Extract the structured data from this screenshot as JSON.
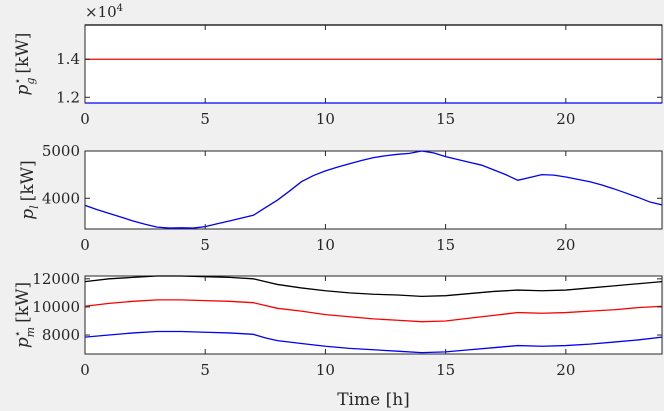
{
  "chart_data": [
    {
      "type": "line",
      "ylabel": "p_g^⋆ [kW]",
      "ylabel_base": "p",
      "ylabel_sub": "g",
      "ylabel_sup": "⋆",
      "ylabel_unit": "[kW]",
      "exponent_label": "×10",
      "exponent_power": "4",
      "xlim": [
        0,
        24
      ],
      "ylim": [
        11700,
        15800
      ],
      "xticks": [
        "0",
        "5",
        "10",
        "15",
        "20"
      ],
      "xtick_values": [
        0,
        5,
        10,
        15,
        20
      ],
      "yticks": [
        "1.2",
        "1.4"
      ],
      "ytick_values": [
        12000,
        14000
      ],
      "grid": false,
      "series": [
        {
          "color": "#000000",
          "x": [
            0,
            24
          ],
          "y": [
            15800,
            15800
          ]
        },
        {
          "color": "#ff0000",
          "x": [
            0,
            24
          ],
          "y": [
            14000,
            14000
          ]
        },
        {
          "color": "#0000ff",
          "x": [
            0,
            24
          ],
          "y": [
            11700,
            11700
          ]
        }
      ]
    },
    {
      "type": "line",
      "ylabel": "p_l [kW]",
      "ylabel_base": "p",
      "ylabel_sub": "l",
      "ylabel_unit": "[kW]",
      "xlim": [
        0,
        24
      ],
      "ylim": [
        3350,
        5000
      ],
      "xticks": [
        "0",
        "5",
        "10",
        "15",
        "20"
      ],
      "xtick_values": [
        0,
        5,
        10,
        15,
        20
      ],
      "yticks": [
        "4000",
        "5000"
      ],
      "ytick_values": [
        4000,
        5000
      ],
      "grid": false,
      "series": [
        {
          "color": "#0000ff",
          "x": [
            0,
            0.5,
            1,
            1.5,
            2,
            2.5,
            3,
            3.5,
            4,
            4.5,
            5,
            5.5,
            6,
            6.5,
            7,
            7.5,
            8,
            8.5,
            9,
            9.5,
            10,
            10.5,
            11,
            11.5,
            12,
            12.5,
            13,
            13.5,
            14,
            14.5,
            15,
            15.5,
            16,
            16.5,
            17,
            17.5,
            18,
            18.5,
            19,
            19.5,
            20,
            20.5,
            21,
            21.5,
            22,
            22.5,
            23,
            23.5,
            24
          ],
          "y": [
            3850,
            3760,
            3680,
            3600,
            3520,
            3450,
            3390,
            3370,
            3375,
            3370,
            3400,
            3460,
            3520,
            3580,
            3640,
            3800,
            3960,
            4150,
            4350,
            4480,
            4580,
            4660,
            4730,
            4800,
            4860,
            4900,
            4930,
            4950,
            5000,
            4960,
            4880,
            4820,
            4760,
            4700,
            4600,
            4500,
            4380,
            4440,
            4500,
            4490,
            4450,
            4400,
            4350,
            4280,
            4200,
            4110,
            4020,
            3920,
            3860
          ]
        }
      ]
    },
    {
      "type": "line",
      "ylabel": "p_m^⋆ [kW]",
      "ylabel_base": "p",
      "ylabel_sub": "m",
      "ylabel_sup": "⋆",
      "ylabel_unit": "[kW]",
      "xlabel": "Time [h]",
      "xlim": [
        0,
        24
      ],
      "ylim": [
        6650,
        12200
      ],
      "xticks": [
        "0",
        "5",
        "10",
        "15",
        "20"
      ],
      "xtick_values": [
        0,
        5,
        10,
        15,
        20
      ],
      "yticks": [
        "8000",
        "10000",
        "12000"
      ],
      "ytick_values": [
        8000,
        10000,
        12000
      ],
      "grid": false,
      "series": [
        {
          "color": "#000000",
          "x": [
            0,
            1,
            2,
            3,
            4,
            5,
            6,
            7,
            7.5,
            8,
            9,
            10,
            11,
            12,
            13,
            14,
            15,
            16,
            17,
            18,
            19,
            20,
            21,
            22,
            23,
            24
          ],
          "y": [
            11800,
            12000,
            12100,
            12200,
            12200,
            12150,
            12100,
            12000,
            11800,
            11600,
            11350,
            11150,
            11000,
            10900,
            10850,
            10750,
            10800,
            10950,
            11100,
            11200,
            11150,
            11200,
            11350,
            11500,
            11650,
            11800
          ]
        },
        {
          "color": "#ff0000",
          "x": [
            0,
            1,
            2,
            3,
            4,
            5,
            6,
            7,
            7.5,
            8,
            9,
            10,
            11,
            12,
            13,
            14,
            15,
            16,
            17,
            18,
            19,
            20,
            21,
            22,
            23,
            24
          ],
          "y": [
            10050,
            10250,
            10400,
            10500,
            10500,
            10450,
            10400,
            10300,
            10100,
            9900,
            9700,
            9450,
            9300,
            9150,
            9050,
            8950,
            9000,
            9200,
            9400,
            9600,
            9550,
            9600,
            9700,
            9800,
            9950,
            10050
          ]
        },
        {
          "color": "#0000ff",
          "x": [
            0,
            1,
            2,
            3,
            4,
            5,
            6,
            7,
            7.5,
            8,
            9,
            10,
            11,
            12,
            13,
            14,
            15,
            16,
            17,
            18,
            19,
            20,
            21,
            22,
            23,
            24
          ],
          "y": [
            7850,
            8000,
            8150,
            8250,
            8250,
            8200,
            8150,
            8050,
            7800,
            7600,
            7400,
            7200,
            7050,
            6950,
            6850,
            6750,
            6800,
            6950,
            7100,
            7250,
            7200,
            7250,
            7350,
            7500,
            7650,
            7850
          ]
        }
      ]
    }
  ]
}
